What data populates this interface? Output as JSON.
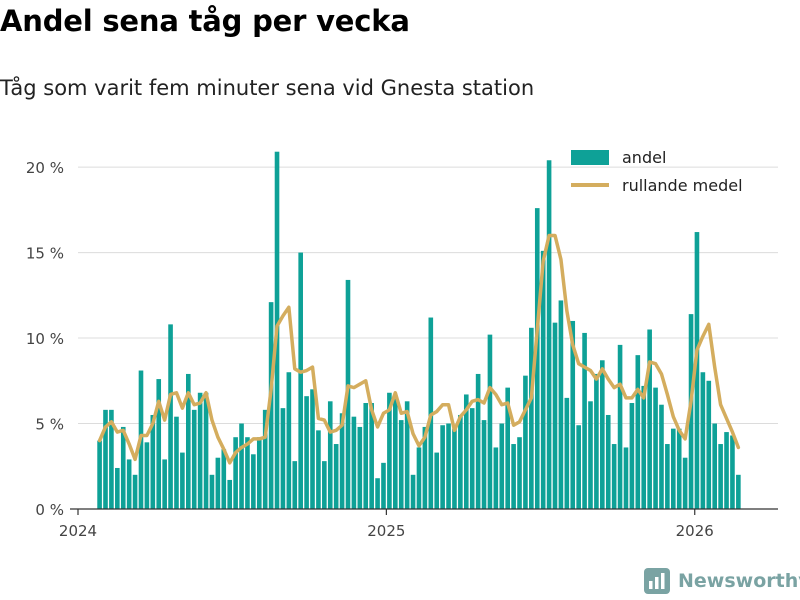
{
  "header": {
    "title": "Andel sena tåg per vecka",
    "subtitle": "Tåg som varit fem minuter sena vid Gnesta station"
  },
  "brand": {
    "name": "Newsworthy"
  },
  "colors": {
    "bar": "#0ea197",
    "line": "#d4ad5e",
    "grid": "#dcdcdc",
    "axis": "#333333",
    "brand": "#7aa3a3"
  },
  "chart_data": {
    "type": "bar",
    "title": "Andel sena tåg per vecka",
    "xlabel": "",
    "ylabel": "",
    "ylim": [
      0,
      21
    ],
    "yticks": [
      0,
      5,
      10,
      15,
      20
    ],
    "ytick_labels": [
      "0 %",
      "5 %",
      "10 %",
      "15 %",
      "20 %"
    ],
    "xlim": [
      2024.0,
      2026.27
    ],
    "xticks": [
      2024,
      2025,
      2026
    ],
    "xtick_labels": [
      "2024",
      "2025",
      "2026"
    ],
    "legend_position": "top-right",
    "legend": [
      "andel",
      "rullande medel"
    ],
    "start": 2024.07,
    "week": 0.01918,
    "series": [
      {
        "name": "andel",
        "kind": "bar",
        "values": [
          4,
          5.8,
          5.8,
          2.4,
          4.8,
          2.9,
          2,
          8.1,
          3.9,
          5.5,
          7.6,
          2.9,
          10.8,
          5.4,
          3.3,
          7.9,
          5.8,
          6.8,
          6.8,
          2,
          3,
          3.5,
          1.7,
          4.2,
          5,
          4.2,
          3.2,
          4.2,
          5.8,
          12.1,
          20.9,
          5.9,
          8,
          2.8,
          15,
          6.6,
          7,
          4.6,
          2.8,
          6.3,
          3.8,
          5.6,
          13.4,
          5.4,
          4.8,
          6.2,
          6.2,
          1.8,
          2.7,
          6.8,
          6.5,
          5.2,
          6.3,
          2,
          3.6,
          4.8,
          11.2,
          3.3,
          4.9,
          5,
          4.7,
          5.5,
          6.7,
          5.9,
          7.9,
          5.2,
          10.2,
          3.6,
          5,
          7.1,
          3.8,
          4.2,
          7.8,
          10.6,
          17.6,
          15.1,
          20.4,
          10.9,
          12.2,
          6.5,
          11,
          4.9,
          10.3,
          6.3,
          7.9,
          8.7,
          5.5,
          3.8,
          9.6,
          3.6,
          6.2,
          9,
          7.2,
          10.5,
          7.1,
          6.1,
          3.8,
          4.7,
          4.7,
          3,
          11.4,
          16.2,
          8,
          7.5,
          5,
          3.8,
          4.5,
          4.3,
          2
        ]
      },
      {
        "name": "rullande medel",
        "kind": "line",
        "values": [
          4,
          4.8,
          5.1,
          4.5,
          4.6,
          3.8,
          2.9,
          4.3,
          4.3,
          5,
          6.3,
          5.2,
          6.7,
          6.8,
          5.9,
          6.8,
          6.1,
          6.2,
          6.8,
          5.2,
          4.2,
          3.5,
          2.7,
          3.3,
          3.6,
          3.8,
          4.1,
          4.1,
          4.2,
          7,
          10.7,
          11.3,
          11.8,
          8.2,
          8,
          8.1,
          8.3,
          5.3,
          5.2,
          4.5,
          4.6,
          4.9,
          7.2,
          7.1,
          7.3,
          7.5,
          5.8,
          4.8,
          5.6,
          5.8,
          6.8,
          5.6,
          5.7,
          4.4,
          3.7,
          4.2,
          5.5,
          5.7,
          6.1,
          6.1,
          4.6,
          5.4,
          5.8,
          6.3,
          6.4,
          6.2,
          7.1,
          6.7,
          6.1,
          6.2,
          4.9,
          5.1,
          5.8,
          6.5,
          10.5,
          14.5,
          16,
          16,
          14.6,
          11.6,
          9.6,
          8.5,
          8.3,
          8.1,
          7.6,
          8.2,
          7.6,
          7.1,
          7.3,
          6.5,
          6.5,
          7,
          6.5,
          8.6,
          8.5,
          7.9,
          6.7,
          5.4,
          4.6,
          4.1,
          6.3,
          9.3,
          10.1,
          10.8,
          8.3,
          6.1,
          5.3,
          4.5,
          3.6
        ]
      }
    ]
  }
}
